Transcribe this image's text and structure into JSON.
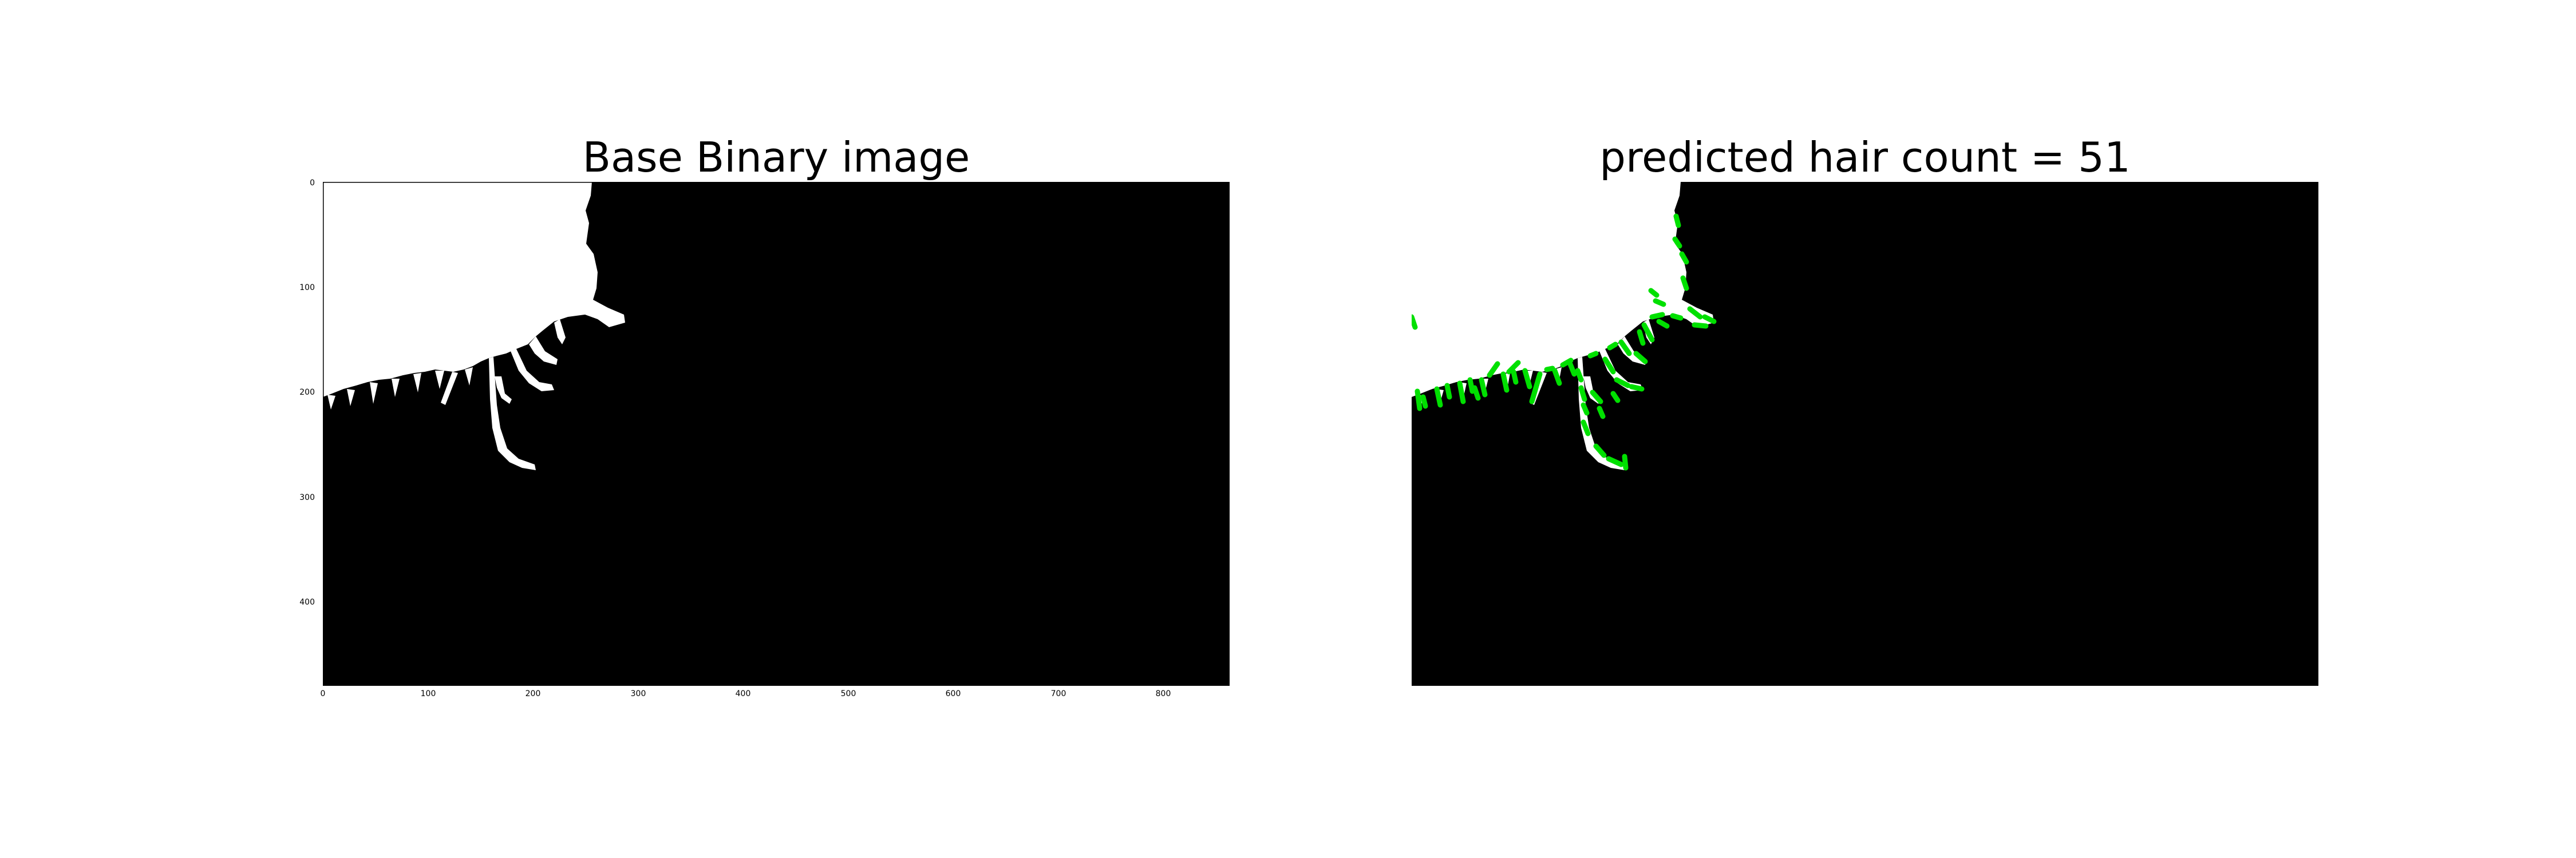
{
  "figure": {
    "left_title": "Base Binary image",
    "right_title": "predicted hair count = 51",
    "left_x_ticks": [
      "0",
      "100",
      "200",
      "300",
      "400",
      "500",
      "600",
      "700",
      "800"
    ],
    "left_y_ticks": [
      "0",
      "100",
      "200",
      "300",
      "400"
    ],
    "colors": {
      "background": "#000000",
      "hair_mask": "#ffffff",
      "detection_marker": "#00e000"
    }
  }
}
